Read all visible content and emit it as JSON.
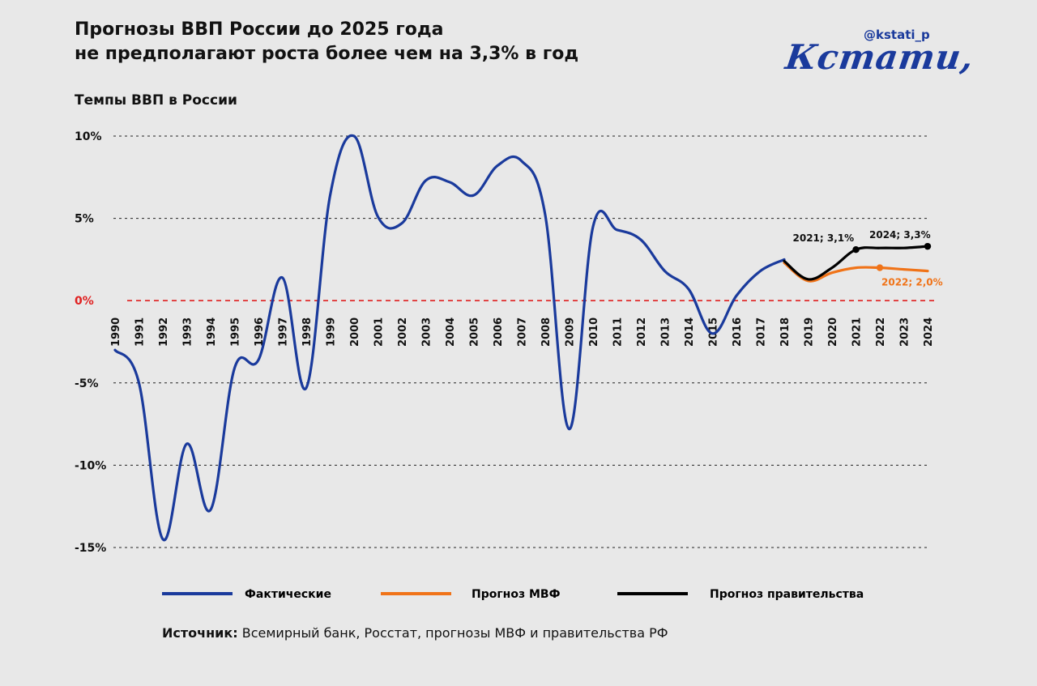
{
  "header": {
    "title_line1": "Прогнозы ВВП России до 2025 года",
    "title_line2": "не предполагают роста более чем на 3,3% в год",
    "subtitle": "Темпы ВВП в России",
    "handle": "@kstati_p",
    "logo_text": "Кстати,"
  },
  "source": {
    "label": "Источник:",
    "text": " Всемирный банк, Росстат, прогнозы МВФ и правительства РФ"
  },
  "colors": {
    "actual": "#1a3a9c",
    "imf": "#f07318",
    "gov": "#000000",
    "zero_line": "#e02020"
  },
  "chart_data": {
    "type": "line",
    "ylim": [
      -15,
      10
    ],
    "y_ticks": [
      10,
      5,
      0,
      -5,
      -10,
      -15
    ],
    "y_tick_labels": [
      "10%",
      "5%",
      "0%",
      "-5%",
      "-10%",
      "-15%"
    ],
    "grid": "dashed horizontal",
    "legend_position": "bottom",
    "x": [
      "1990",
      "1991",
      "1992",
      "1993",
      "1994",
      "1995",
      "1996",
      "1997",
      "1998",
      "1999",
      "2000",
      "2001",
      "2002",
      "2003",
      "2004",
      "2005",
      "2006",
      "2007",
      "2008",
      "2009",
      "2010",
      "2011",
      "2012",
      "2013",
      "2014",
      "2015",
      "2016",
      "2017",
      "2018",
      "2019",
      "2020",
      "2021",
      "2022",
      "2023",
      "2024"
    ],
    "series": [
      {
        "name": "Фактические",
        "color": "#1a3a9c",
        "x": [
          "1990",
          "1991",
          "1992",
          "1993",
          "1994",
          "1995",
          "1996",
          "1997",
          "1998",
          "1999",
          "2000",
          "2001",
          "2002",
          "2003",
          "2004",
          "2005",
          "2006",
          "2007",
          "2008",
          "2009",
          "2010",
          "2011",
          "2012",
          "2013",
          "2014",
          "2015",
          "2016",
          "2017",
          "2018"
        ],
        "values": [
          -3.0,
          -5.0,
          -14.5,
          -8.7,
          -12.7,
          -4.1,
          -3.6,
          1.4,
          -5.3,
          6.4,
          10.0,
          5.1,
          4.7,
          7.3,
          7.2,
          6.4,
          8.2,
          8.5,
          5.2,
          -7.8,
          4.5,
          4.3,
          3.7,
          1.8,
          0.7,
          -2.0,
          0.3,
          1.8,
          2.5
        ]
      },
      {
        "name": "Прогноз МВФ",
        "color": "#f07318",
        "x": [
          "2018",
          "2019",
          "2020",
          "2021",
          "2022",
          "2023",
          "2024"
        ],
        "values": [
          2.3,
          1.2,
          1.7,
          2.0,
          2.0,
          1.9,
          1.8
        ]
      },
      {
        "name": "Прогноз правительства",
        "color": "#000000",
        "x": [
          "2018",
          "2019",
          "2020",
          "2021",
          "2022",
          "2023",
          "2024"
        ],
        "values": [
          2.4,
          1.3,
          2.0,
          3.1,
          3.2,
          3.2,
          3.3
        ]
      }
    ],
    "annotations": [
      {
        "text": "2021; 3,1%",
        "x": "2021",
        "y": 3.1,
        "series": "Прогноз правительства"
      },
      {
        "text": "2024; 3,3%",
        "x": "2024",
        "y": 3.3,
        "series": "Прогноз правительства"
      },
      {
        "text": "2022; 2,0%",
        "x": "2022",
        "y": 2.0,
        "series": "Прогноз МВФ"
      }
    ]
  }
}
